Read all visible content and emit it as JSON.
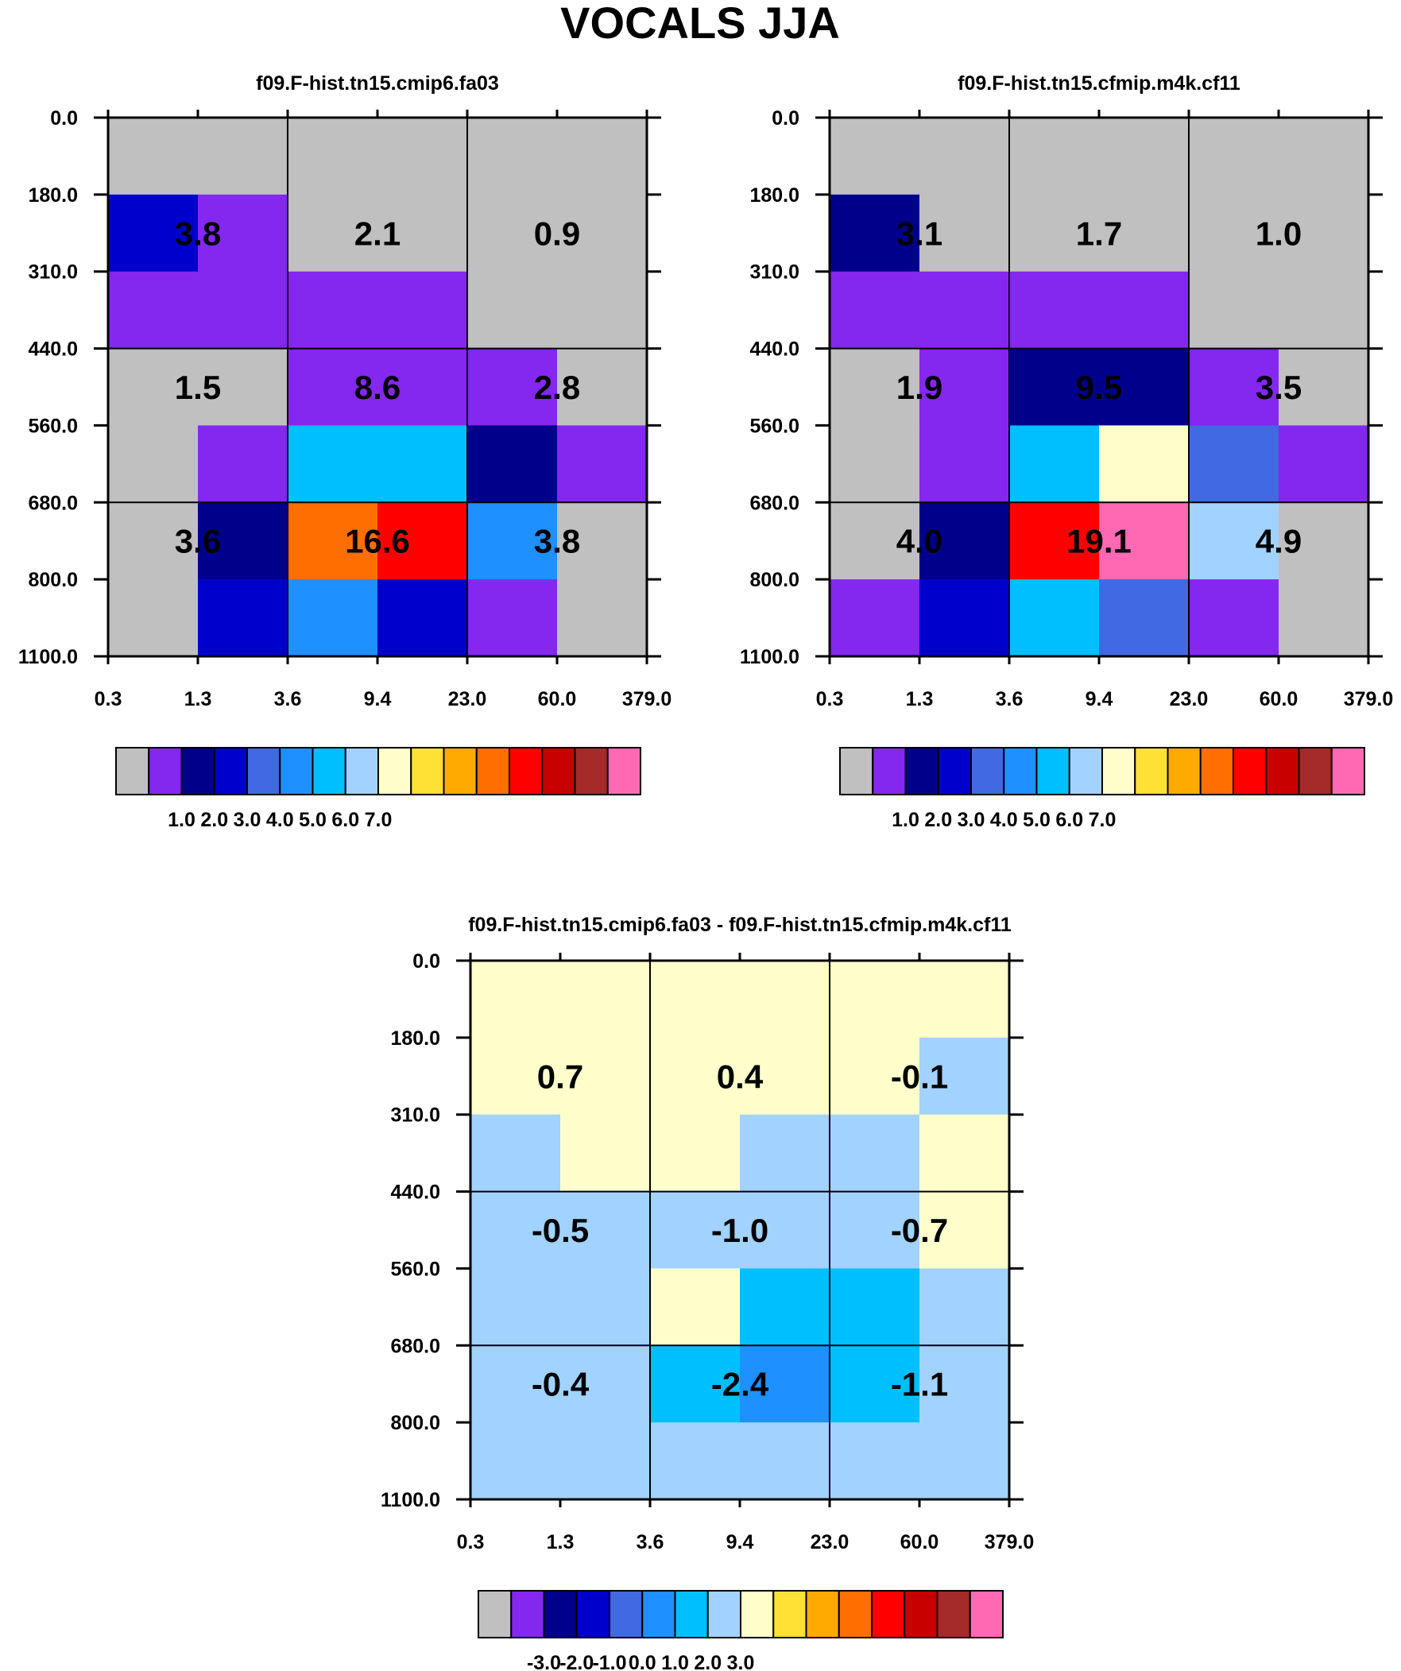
{
  "figure_title": "VOCALS JJA",
  "colors": {
    "palette": [
      "#c0c0c0",
      "#8427ef",
      "#00008b",
      "#0000cd",
      "#4169e1",
      "#1e90ff",
      "#00bfff",
      "#a2d2ff",
      "#ffffcc",
      "#ffe135",
      "#ffaa00",
      "#ff6e00",
      "#ff0000",
      "#c80000",
      "#a52a2a",
      "#ff69b4"
    ]
  },
  "chart_data": [
    {
      "type": "heatmap",
      "title": "f09.F-hist.tn15.cmip6.fa03",
      "x_ticks": [
        "0.3",
        "1.3",
        "3.6",
        "9.4",
        "23.0",
        "60.0",
        "379.0"
      ],
      "y_ticks": [
        "0.0",
        "180.0",
        "310.0",
        "440.0",
        "560.0",
        "680.0",
        "800.0",
        "1100.0"
      ],
      "cells": [
        [
          0,
          0,
          0,
          0,
          0,
          0
        ],
        [
          3,
          1,
          0,
          0,
          0,
          0
        ],
        [
          1,
          1,
          1,
          1,
          0,
          0
        ],
        [
          0,
          0,
          1,
          1,
          1,
          0
        ],
        [
          0,
          1,
          6,
          6,
          2,
          1
        ],
        [
          0,
          2,
          11,
          12,
          5,
          0
        ],
        [
          0,
          3,
          5,
          3,
          1,
          0
        ]
      ],
      "values": [
        [
          "3.8",
          "2.1",
          "0.9"
        ],
        [
          "1.5",
          "8.6",
          "2.8"
        ],
        [
          "3.6",
          "16.6",
          "3.8"
        ]
      ],
      "colorbar_labels": [
        "1.0",
        "2.0",
        "3.0",
        "4.0",
        "5.0",
        "6.0",
        "7.0"
      ]
    },
    {
      "type": "heatmap",
      "title": "f09.F-hist.tn15.cfmip.m4k.cf11",
      "x_ticks": [
        "0.3",
        "1.3",
        "3.6",
        "9.4",
        "23.0",
        "60.0",
        "379.0"
      ],
      "y_ticks": [
        "0.0",
        "180.0",
        "310.0",
        "440.0",
        "560.0",
        "680.0",
        "800.0",
        "1100.0"
      ],
      "cells": [
        [
          0,
          0,
          0,
          0,
          0,
          0
        ],
        [
          2,
          0,
          0,
          0,
          0,
          0
        ],
        [
          1,
          1,
          1,
          1,
          0,
          0
        ],
        [
          0,
          1,
          2,
          2,
          1,
          0
        ],
        [
          0,
          1,
          6,
          8,
          4,
          1
        ],
        [
          0,
          2,
          12,
          15,
          7,
          0
        ],
        [
          1,
          3,
          6,
          4,
          1,
          0
        ]
      ],
      "values": [
        [
          "3.1",
          "1.7",
          "1.0"
        ],
        [
          "1.9",
          "9.5",
          "3.5"
        ],
        [
          "4.0",
          "19.1",
          "4.9"
        ]
      ],
      "colorbar_labels": [
        "1.0",
        "2.0",
        "3.0",
        "4.0",
        "5.0",
        "6.0",
        "7.0"
      ]
    },
    {
      "type": "heatmap",
      "title": "f09.F-hist.tn15.cmip6.fa03 - f09.F-hist.tn15.cfmip.m4k.cf11",
      "x_ticks": [
        "0.3",
        "1.3",
        "3.6",
        "9.4",
        "23.0",
        "60.0",
        "379.0"
      ],
      "y_ticks": [
        "0.0",
        "180.0",
        "310.0",
        "440.0",
        "560.0",
        "680.0",
        "800.0",
        "1100.0"
      ],
      "cells": [
        [
          8,
          8,
          8,
          8,
          8,
          8
        ],
        [
          8,
          8,
          8,
          8,
          8,
          7
        ],
        [
          7,
          8,
          8,
          7,
          7,
          8
        ],
        [
          7,
          7,
          7,
          7,
          7,
          8
        ],
        [
          7,
          7,
          8,
          6,
          6,
          7
        ],
        [
          7,
          7,
          6,
          5,
          6,
          7
        ],
        [
          7,
          7,
          7,
          7,
          7,
          7
        ]
      ],
      "values": [
        [
          "0.7",
          "0.4",
          "-0.1"
        ],
        [
          "-0.5",
          "-1.0",
          "-0.7"
        ],
        [
          "-0.4",
          "-2.4",
          "-1.1"
        ]
      ],
      "colorbar_labels": [
        "-3.0",
        "-2.0",
        "-1.0",
        "0.0",
        "1.0",
        "2.0",
        "3.0"
      ]
    }
  ]
}
